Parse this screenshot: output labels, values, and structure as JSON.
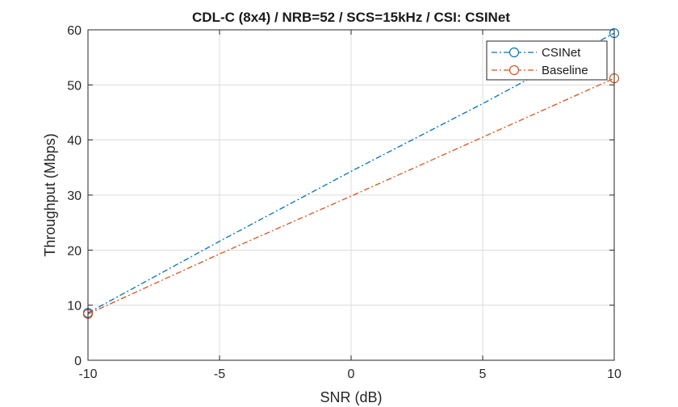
{
  "chart_data": {
    "type": "line",
    "title": "CDL-C (8x4) / NRB=52 / SCS=15kHz / CSI: CSINet",
    "xlabel": "SNR (dB)",
    "ylabel": "Throughput (Mbps)",
    "xlim": [
      -10,
      10
    ],
    "ylim": [
      0,
      60
    ],
    "xticks": [
      -10,
      -5,
      0,
      5,
      10
    ],
    "yticks": [
      0,
      10,
      20,
      30,
      40,
      50,
      60
    ],
    "xtick_labels": [
      "-10",
      "-5",
      "0",
      "5",
      "10"
    ],
    "ytick_labels": [
      "0",
      "10",
      "20",
      "30",
      "40",
      "50",
      "60"
    ],
    "grid": true,
    "legend_position": "top-right",
    "x": [
      -10,
      10
    ],
    "series": [
      {
        "name": "CSINet",
        "color": "#0072BD",
        "values": [
          8.6,
          59.4
        ],
        "curve_samples": {
          "x": [
            -10,
            -5,
            0,
            5,
            10
          ],
          "y": [
            8.6,
            21.6,
            34.3,
            46.6,
            59.4
          ]
        },
        "marker": "circle",
        "line_style": "dash-dot"
      },
      {
        "name": "Baseline",
        "color": "#D95319",
        "values": [
          8.4,
          51.2
        ],
        "curve_samples": {
          "x": [
            -10,
            -5,
            0,
            5,
            10
          ],
          "y": [
            8.4,
            19.3,
            29.8,
            40.5,
            51.2
          ]
        },
        "marker": "circle",
        "line_style": "dash-dot"
      }
    ]
  }
}
